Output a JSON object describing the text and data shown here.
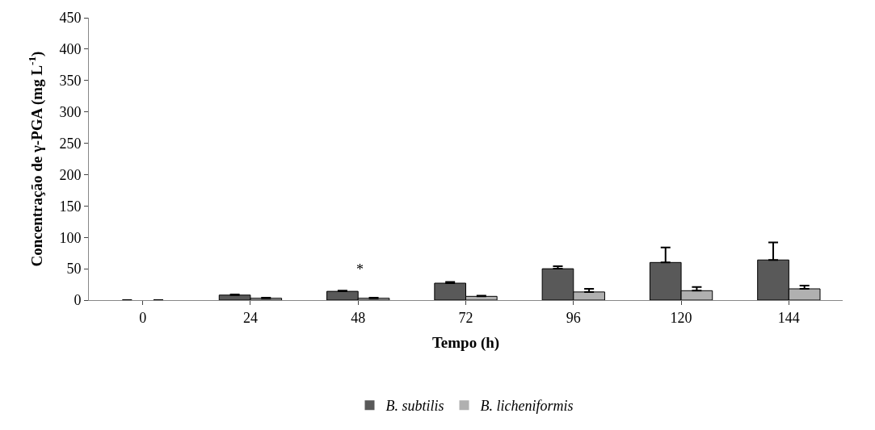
{
  "chart_data": {
    "type": "bar",
    "xlabel": "Tempo (h)",
    "ylabel": "Concentração de γ-PGA (mg L$^{-1}$)",
    "categories": [
      "0",
      "24",
      "48",
      "72",
      "96",
      "120",
      "144"
    ],
    "series": [
      {
        "name": "B. subtilis",
        "color": "#595959",
        "values": [
          0,
          8,
          14,
          27,
          50,
          60,
          64
        ],
        "errors": [
          0,
          1,
          1,
          2,
          4,
          24,
          28
        ]
      },
      {
        "name": "B. licheniformis",
        "color": "#b0b0b0",
        "values": [
          0,
          3,
          3,
          6,
          13,
          15,
          18
        ],
        "errors": [
          0,
          1,
          1,
          1,
          5,
          6,
          5
        ]
      }
    ],
    "annotations": [
      "*"
    ],
    "ylim": [
      0,
      450
    ],
    "yticks": [
      0,
      50,
      100,
      150,
      200,
      250,
      300,
      350,
      400,
      450
    ],
    "legend": "bottom"
  }
}
